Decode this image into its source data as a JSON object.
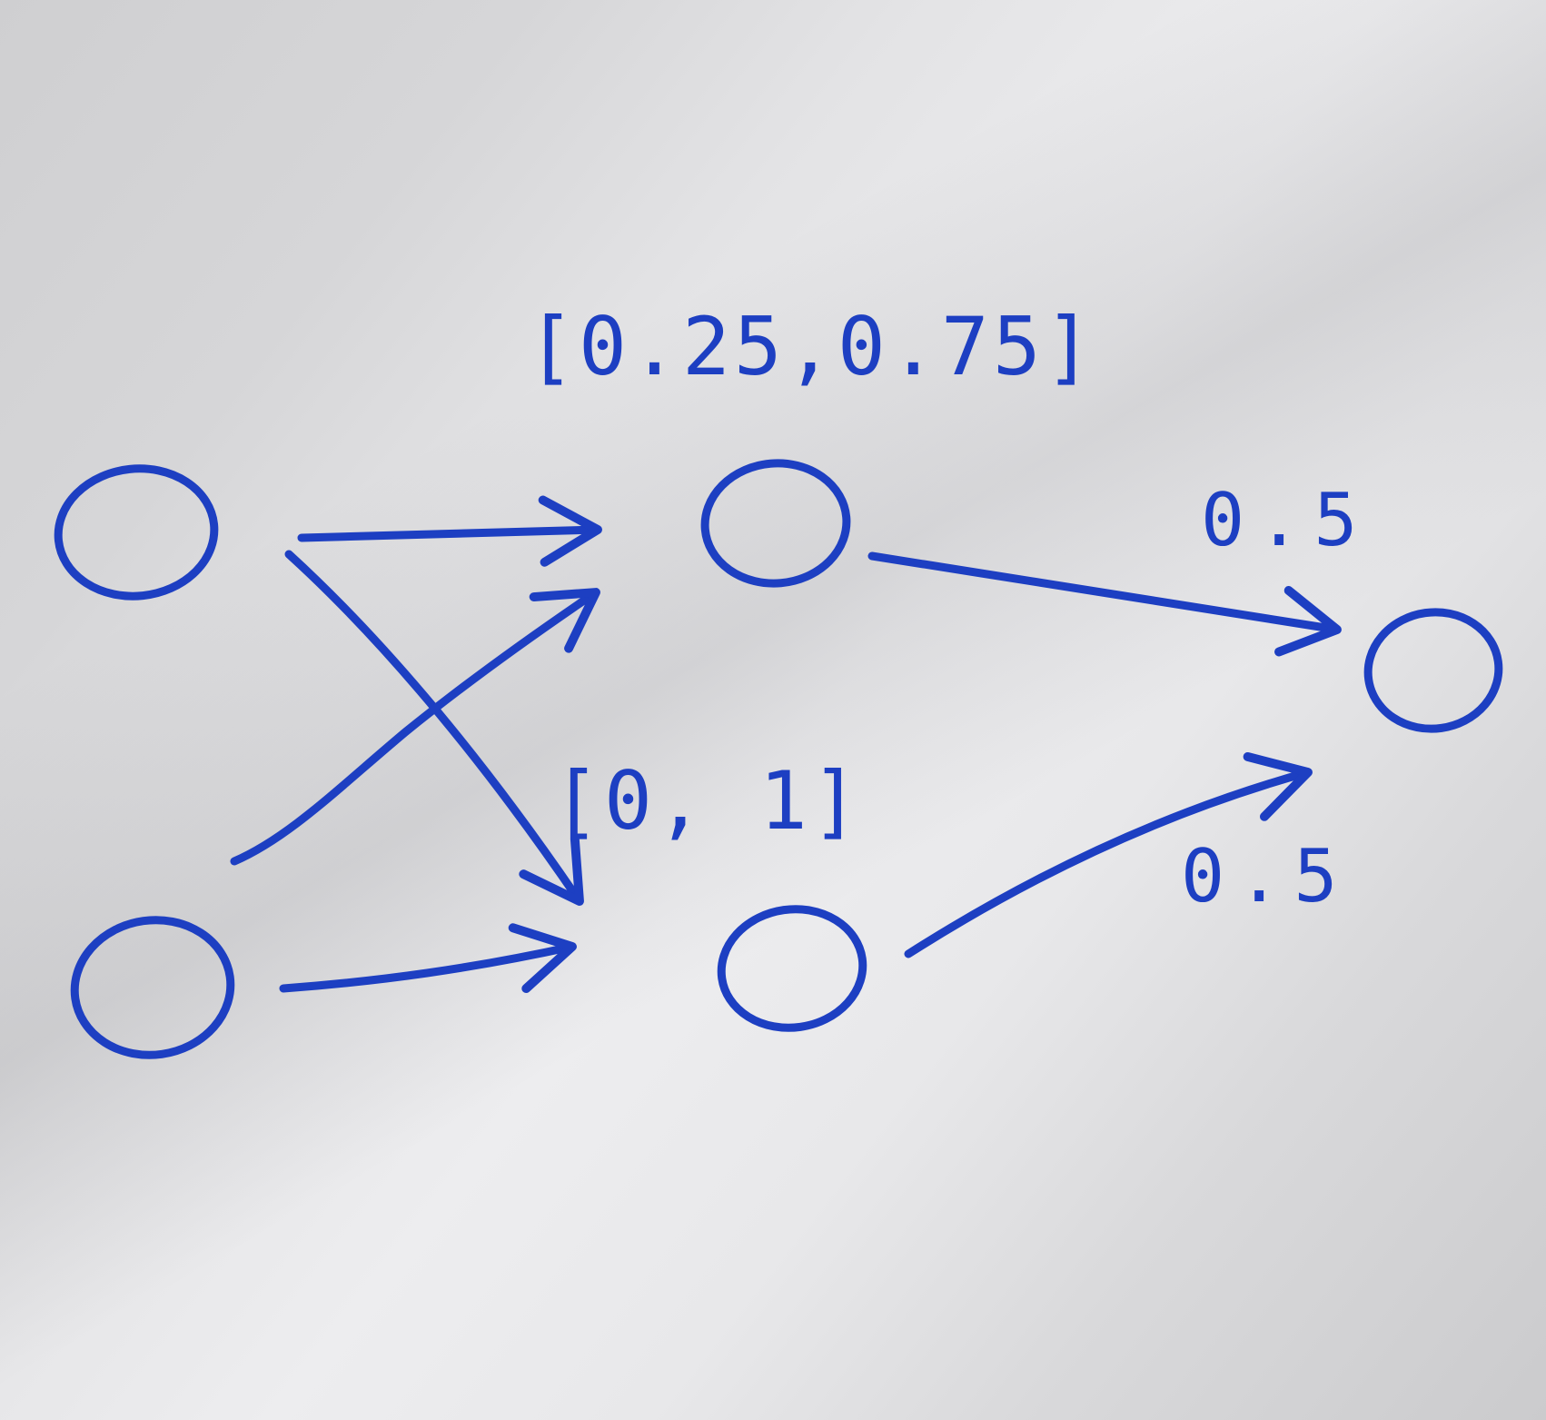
{
  "colors": {
    "ink": "#1d3fc2",
    "paper": "#e6e6e8"
  },
  "diagram": {
    "nodes": [
      {
        "id": "input-1",
        "layer": "input"
      },
      {
        "id": "input-2",
        "layer": "input"
      },
      {
        "id": "hidden-1",
        "layer": "hidden"
      },
      {
        "id": "hidden-2",
        "layer": "hidden"
      },
      {
        "id": "output-1",
        "layer": "output"
      }
    ],
    "edges": [
      {
        "from": "input-1",
        "to": "hidden-1"
      },
      {
        "from": "input-1",
        "to": "hidden-2"
      },
      {
        "from": "input-2",
        "to": "hidden-1"
      },
      {
        "from": "input-2",
        "to": "hidden-2"
      },
      {
        "from": "hidden-1",
        "to": "output-1"
      },
      {
        "from": "hidden-2",
        "to": "output-1"
      }
    ],
    "labels": {
      "hidden_1_range": "[0.25,0.75]",
      "hidden_2_range": "[0, 1]",
      "weight_hidden_1": "0.5",
      "weight_hidden_2": "0.5"
    }
  }
}
